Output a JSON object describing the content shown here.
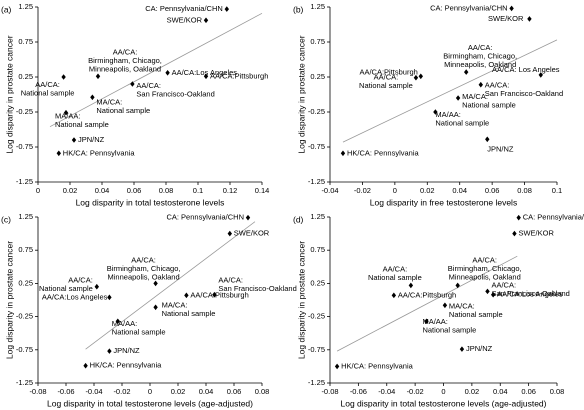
{
  "chart_data": [
    {
      "type": "scatter",
      "panel_label": "(a)",
      "xlabel": "Log disparity in total testosterone levels",
      "ylabel": "Log disparity in prostate cancer",
      "xlim": [
        0,
        0.14
      ],
      "xticks": [
        0,
        0.02,
        0.04,
        0.06,
        0.08,
        0.1,
        0.12,
        0.14
      ],
      "ylim": [
        -1.25,
        1.25
      ],
      "yticks": [
        -1.25,
        -0.75,
        -0.25,
        0.25,
        0.75,
        1.25
      ],
      "marker_color": "#000000",
      "line_color": "#999999",
      "x": [
        0.118,
        0.105,
        0.105,
        0.081,
        0.016,
        0.0375,
        0.059,
        0.034,
        0.0175,
        0.0225,
        0.013
      ],
      "y": [
        1.22,
        1.06,
        0.26,
        0.31,
        0.25,
        0.26,
        0.15,
        -0.04,
        -0.26,
        -0.65,
        -0.84
      ],
      "labels": [
        [
          "CA: Pennsylvania/CHN"
        ],
        [
          "SWE/KOR"
        ],
        [
          "AA/CA:Pittsburgh"
        ],
        [
          "AA/CA:Los Angeles"
        ],
        [
          "AA/CA:",
          "National sample"
        ],
        [
          "AA/CA:",
          "Birmingham, Chicago,",
          "Minneapolis, Oakland"
        ],
        [
          "AA/CA:",
          "San Francisco-Oakland"
        ],
        [
          "MA/CA:",
          "National sample"
        ],
        [
          "MA/AA:",
          "National sample"
        ],
        [
          "JPN/NZ"
        ],
        [
          "HK/CA: Pennsylvania"
        ]
      ],
      "fit": {
        "x": [
          0.0075,
          0.14
        ],
        "y": [
          -0.46,
          1.16
        ]
      }
    },
    {
      "type": "scatter",
      "panel_label": "(b)",
      "xlabel": "Log disparity in free testosterone levels",
      "ylabel": "Log disparity in prostate cancer",
      "xlim": [
        -0.04,
        0.1
      ],
      "xticks": [
        -0.04,
        -0.02,
        0,
        0.02,
        0.04,
        0.06,
        0.08,
        0.1
      ],
      "ylim": [
        -1.25,
        1.25
      ],
      "yticks": [
        -1.25,
        -0.75,
        -0.25,
        0.25,
        0.75,
        1.25
      ],
      "marker_color": "#000000",
      "line_color": "#999999",
      "x": [
        0.072,
        0.083,
        0.016,
        0.09,
        0.013,
        0.044,
        0.053,
        0.039,
        0.025,
        0.057,
        -0.032
      ],
      "y": [
        1.23,
        1.08,
        0.26,
        0.28,
        0.24,
        0.32,
        0.14,
        -0.05,
        -0.25,
        -0.64,
        -0.84
      ],
      "labels": [
        [
          "CA: Pennsylvania/CHN"
        ],
        [
          "SWE/KOR"
        ],
        [
          "AA/CA:Pittsburgh"
        ],
        [
          "AA/CA: Los Angeles"
        ],
        [
          "AA/CA:",
          "National sample"
        ],
        [
          "AA/CA:",
          "Birmingham, Chicago,",
          "Minneapolis, Oakland"
        ],
        [
          "AA/CA:",
          "San Francisco-Oakland"
        ],
        [
          "MA/CA:",
          "National sample"
        ],
        [
          "MA/AA:",
          "National sample"
        ],
        [
          "JPN/NZ"
        ],
        [
          "HK/CA: Pennsylvania"
        ]
      ],
      "fit": {
        "x": [
          -0.032,
          0.1
        ],
        "y": [
          -0.68,
          0.78
        ]
      }
    },
    {
      "type": "scatter",
      "panel_label": "(c)",
      "xlabel": "Log disparity in total testosterone levels (age-adjusted)",
      "ylabel": "Log disparity in prostate cancer",
      "xlim": [
        -0.08,
        0.08
      ],
      "xticks": [
        -0.08,
        -0.06,
        -0.04,
        -0.02,
        0,
        0.02,
        0.04,
        0.06,
        0.08
      ],
      "ylim": [
        -1.25,
        1.25
      ],
      "yticks": [
        -1.25,
        -0.75,
        -0.25,
        0.25,
        0.75,
        1.25
      ],
      "marker_color": "#000000",
      "line_color": "#999999",
      "x": [
        0.07,
        0.057,
        0.026,
        -0.029,
        -0.038,
        0.004,
        0.046,
        0.004,
        -0.023,
        -0.029,
        -0.046
      ],
      "y": [
        1.24,
        1.0,
        0.07,
        0.04,
        0.2,
        0.25,
        0.08,
        -0.11,
        -0.32,
        -0.77,
        -0.99
      ],
      "labels": [
        [
          "CA: Pennsylvania/CHN"
        ],
        [
          "SWE/KOR"
        ],
        [
          "AA/CA:Pittsburgh"
        ],
        [
          "AA/CA:Los Angeles"
        ],
        [
          "AA/CA:",
          "National sample"
        ],
        [
          "AA/CA:",
          "Birmingham, Chicago,",
          "Minneapolis, Oakland"
        ],
        [
          "AA/CA:",
          "San Francisco-Oakland"
        ],
        [
          "MA/CA:",
          "National sample"
        ],
        [
          "MA/AA:",
          "National sample"
        ],
        [
          "JPN/NZ"
        ],
        [
          "HK/CA: Pennsylvania"
        ]
      ],
      "fit": {
        "x": [
          -0.046,
          0.075
        ],
        "y": [
          -0.74,
          1.18
        ]
      }
    },
    {
      "type": "scatter",
      "panel_label": "(d)",
      "xlabel": "Log disparity in total testosterone levels (age-adjusted)",
      "ylabel": "Log disparity in prostate cancer",
      "xlim": [
        -0.08,
        0.08
      ],
      "xticks": [
        -0.08,
        -0.06,
        -0.04,
        -0.02,
        0,
        0.02,
        0.04,
        0.06,
        0.08
      ],
      "ylim": [
        -1.25,
        1.25
      ],
      "yticks": [
        -1.25,
        -0.75,
        -0.25,
        0.25,
        0.75,
        1.25
      ],
      "marker_color": "#000000",
      "line_color": "#999999",
      "x": [
        0.053,
        0.05,
        -0.035,
        0.035,
        -0.023,
        0.01,
        0.031,
        0.001,
        -0.012,
        0.013,
        -0.075
      ],
      "y": [
        1.24,
        1.0,
        0.07,
        0.08,
        0.22,
        0.22,
        0.13,
        -0.08,
        -0.32,
        -0.74,
        -1.0
      ],
      "labels": [
        [
          "CA: Pennsylvania/CHN"
        ],
        [
          "SWE/KOR"
        ],
        [
          "AA/CA:Pittsburgh"
        ],
        [
          "AA/CA:Los Angeles"
        ],
        [
          "AA/CA:",
          "National sample"
        ],
        [
          "AA/CA:",
          "Birmingham, Chicago,",
          "Minneapolis, Oakland"
        ],
        [
          "AA/CA:",
          "San Francisco-Oakland"
        ],
        [
          "MA/CA:",
          "National sample"
        ],
        [
          "MA/AA:",
          "National sample"
        ],
        [
          "JPN/NZ"
        ],
        [
          "HK/CA: Pennsylvania"
        ]
      ],
      "fit": {
        "x": [
          -0.075,
          0.052
        ],
        "y": [
          -0.77,
          0.66
        ]
      }
    }
  ]
}
